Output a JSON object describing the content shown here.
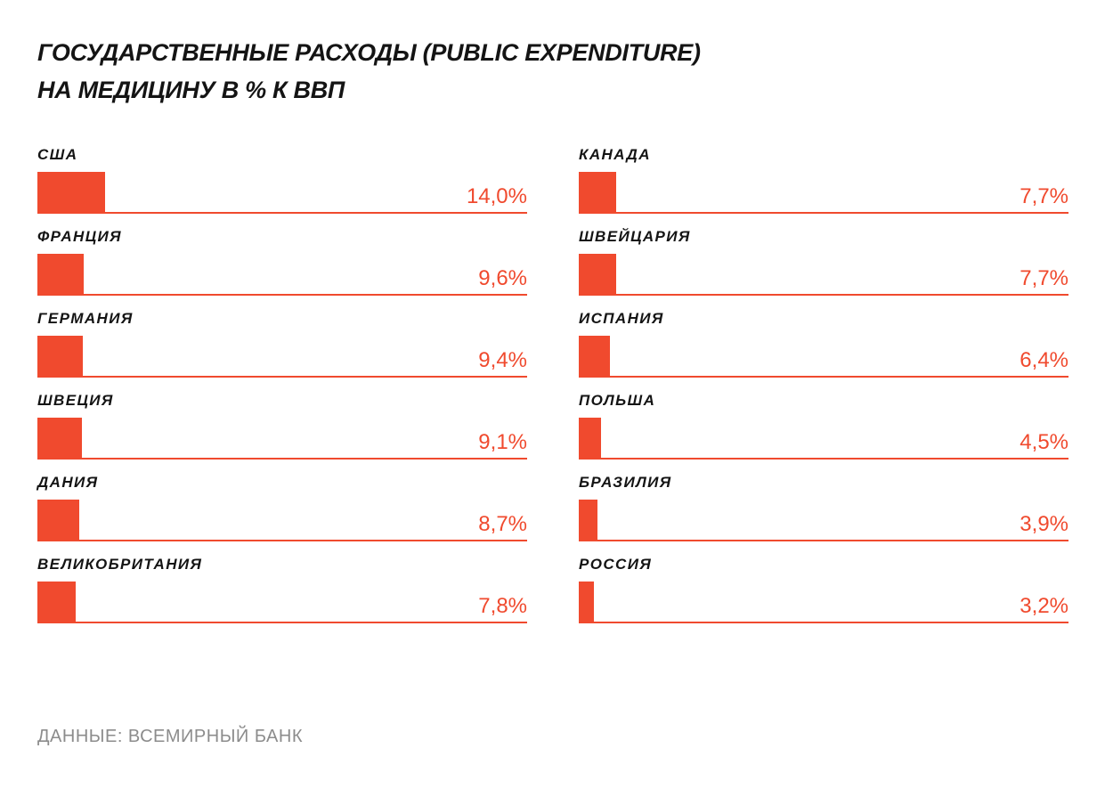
{
  "title_line1": "ГОСУДАРСТВЕННЫЕ РАСХОДЫ (PUBLIC EXPENDITURE)",
  "title_line2": "НА МЕДИЦИНУ В % К ВВП",
  "source": "ДАННЫЕ: ВСЕМИРНЫЙ БАНК",
  "colors": {
    "accent": "#f04a2e",
    "text": "#141414",
    "muted": "#8c8c8c"
  },
  "chart_data": {
    "type": "bar",
    "unit": "%",
    "xlim": [
      0,
      100
    ],
    "columns": [
      {
        "items": [
          {
            "country": "США",
            "value": 14.0,
            "label": "14,0%"
          },
          {
            "country": "ФРАНЦИЯ",
            "value": 9.6,
            "label": "9,6%"
          },
          {
            "country": "ГЕРМАНИЯ",
            "value": 9.4,
            "label": "9,4%"
          },
          {
            "country": "ШВЕЦИЯ",
            "value": 9.1,
            "label": "9,1%"
          },
          {
            "country": "ДАНИЯ",
            "value": 8.7,
            "label": "8,7%"
          },
          {
            "country": "ВЕЛИКОБРИТАНИЯ",
            "value": 7.8,
            "label": "7,8%"
          }
        ]
      },
      {
        "items": [
          {
            "country": "КАНАДА",
            "value": 7.7,
            "label": "7,7%"
          },
          {
            "country": "ШВЕЙЦАРИЯ",
            "value": 7.7,
            "label": "7,7%"
          },
          {
            "country": "ИСПАНИЯ",
            "value": 6.4,
            "label": "6,4%"
          },
          {
            "country": "ПОЛЬША",
            "value": 4.5,
            "label": "4,5%"
          },
          {
            "country": "БРАЗИЛИЯ",
            "value": 3.9,
            "label": "3,9%"
          },
          {
            "country": "РОССИЯ",
            "value": 3.2,
            "label": "3,2%"
          }
        ]
      }
    ]
  }
}
